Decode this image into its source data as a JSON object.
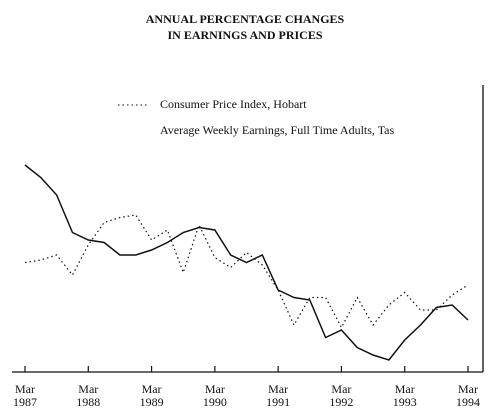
{
  "chart_data": {
    "type": "line",
    "title": [
      "ANNUAL PERCENTAGE CHANGES",
      "IN EARNINGS AND PRICES"
    ],
    "categories": [
      "Mar 1987",
      null,
      null,
      null,
      "Mar 1988",
      null,
      null,
      null,
      "Mar 1989",
      null,
      null,
      null,
      "Mar 1990",
      null,
      null,
      null,
      "Mar 1991",
      null,
      null,
      null,
      "Mar 1992",
      null,
      null,
      null,
      "Mar 1993",
      null,
      null,
      null,
      "Mar 1994"
    ],
    "series": [
      {
        "name": "Consumer Price Index, Hobart",
        "color": "#111111",
        "dash": "dotted",
        "values": [
          4.3,
          4.4,
          4.6,
          3.8,
          5.0,
          5.9,
          6.1,
          6.2,
          5.2,
          5.6,
          3.9,
          5.8,
          4.5,
          4.1,
          4.7,
          4.2,
          3.2,
          1.8,
          2.9,
          2.9,
          1.7,
          2.9,
          1.8,
          2.6,
          3.1,
          2.4,
          2.4,
          3.0,
          3.4
        ]
      },
      {
        "name": "Average Weekly Earnings, Full Time Adults, Tas",
        "color": "#111111",
        "dash": "solid",
        "values": [
          8.2,
          7.7,
          7.0,
          5.5,
          5.2,
          5.1,
          4.6,
          4.6,
          4.8,
          5.1,
          5.5,
          5.7,
          5.6,
          4.6,
          4.3,
          4.6,
          3.2,
          2.9,
          2.8,
          1.3,
          1.6,
          0.9,
          0.6,
          0.4,
          1.2,
          1.8,
          2.5,
          2.6,
          2.0
        ]
      }
    ],
    "ylim": [
      0,
      11.4
    ]
  }
}
